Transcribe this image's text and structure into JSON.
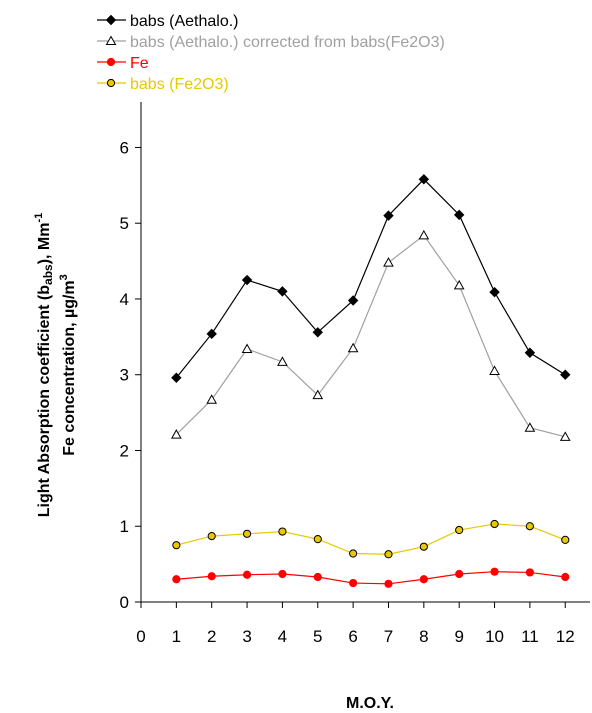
{
  "chart_data": {
    "type": "line",
    "title": "",
    "xlabel": "M.O.Y.",
    "ylabel_line1": "Light Absorption coefficient (babs), Mm-1",
    "ylabel_line2": "Fe concentration, µg/m3",
    "xlim": [
      0,
      12.7
    ],
    "ylim": [
      0,
      6.6
    ],
    "x_ticks": [
      0,
      1,
      2,
      3,
      4,
      5,
      6,
      7,
      8,
      9,
      10,
      11,
      12
    ],
    "y_ticks": [
      0,
      1,
      2,
      3,
      4,
      5,
      6
    ],
    "legend_position": "top-left, above plot",
    "grid": false,
    "x": [
      1,
      2,
      3,
      4,
      5,
      6,
      7,
      8,
      9,
      10,
      11,
      12
    ],
    "series": [
      {
        "name": "babs (Aethalo.)",
        "color": "#000000",
        "text_color": "#000000",
        "marker": "diamond-filled",
        "values": [
          2.96,
          3.54,
          4.25,
          4.1,
          3.56,
          3.98,
          5.1,
          5.58,
          5.11,
          4.09,
          3.29,
          3.0
        ]
      },
      {
        "name": "babs (Aethalo.) corrected from babs(Fe2O3)",
        "color": "#a0a0a0",
        "text_color": "#a0a0a0",
        "marker": "triangle-open",
        "values": [
          2.21,
          2.67,
          3.34,
          3.17,
          2.73,
          3.35,
          4.48,
          4.84,
          4.18,
          3.05,
          2.3,
          2.18
        ]
      },
      {
        "name": "Fe",
        "color": "#ff0000",
        "text_color": "#ff0000",
        "marker": "circle-filled",
        "values": [
          0.3,
          0.34,
          0.36,
          0.37,
          0.33,
          0.25,
          0.24,
          0.3,
          0.37,
          0.4,
          0.39,
          0.33
        ]
      },
      {
        "name": "babs (Fe2O3)",
        "color": "#e8c800",
        "text_color": "#e8c800",
        "marker": "circle-yellow",
        "values": [
          0.75,
          0.87,
          0.9,
          0.93,
          0.83,
          0.64,
          0.63,
          0.73,
          0.95,
          1.03,
          1.0,
          0.82
        ]
      }
    ]
  }
}
